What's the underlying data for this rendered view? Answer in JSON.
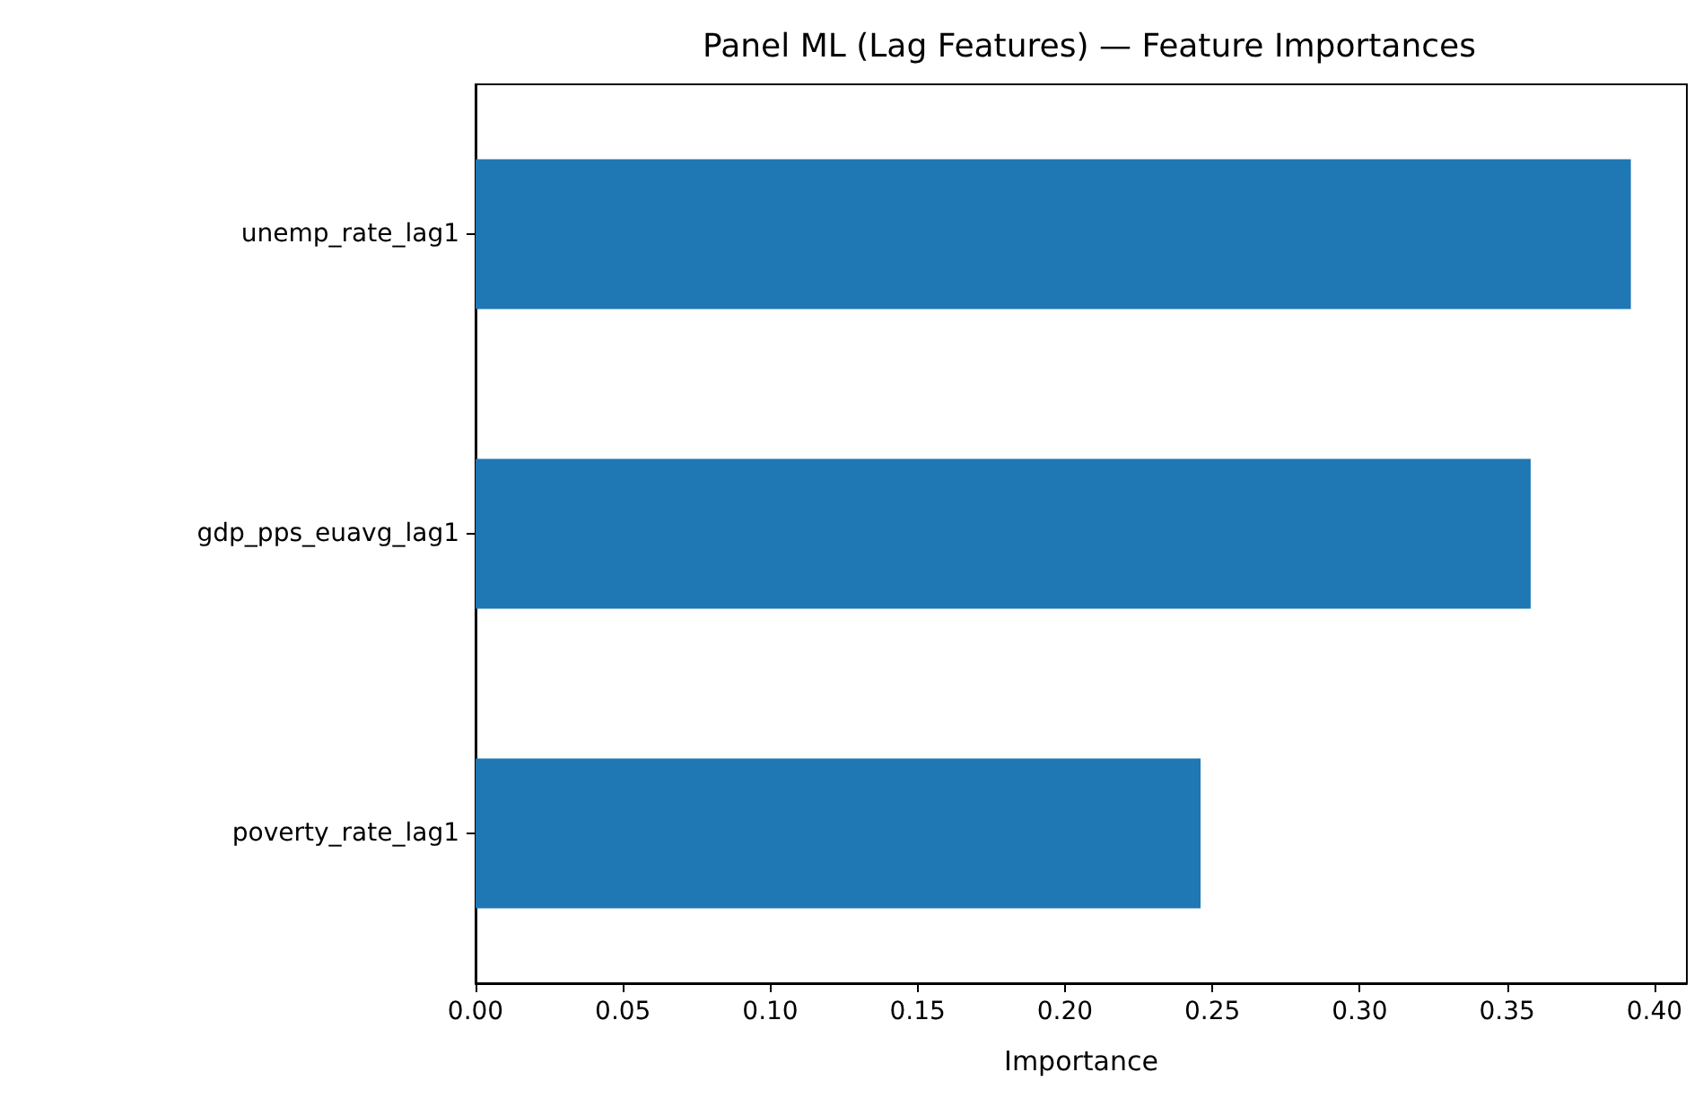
{
  "chart_data": {
    "type": "bar",
    "orientation": "horizontal",
    "title": "Panel ML (Lag Features) — Feature Importances",
    "xlabel": "Importance",
    "categories": [
      "unemp_rate_lag1",
      "gdp_pps_euavg_lag1",
      "poverty_rate_lag1"
    ],
    "values": [
      0.392,
      0.358,
      0.246
    ],
    "color": "#1f77b4",
    "xlim": [
      0,
      0.411
    ],
    "xticks": [
      {
        "value": 0,
        "label": "0.00"
      },
      {
        "value": 0.05,
        "label": "0.05"
      },
      {
        "value": 0.1,
        "label": "0.10"
      },
      {
        "value": 0.15,
        "label": "0.15"
      },
      {
        "value": 0.2,
        "label": "0.20"
      },
      {
        "value": 0.25,
        "label": "0.25"
      },
      {
        "value": 0.3,
        "label": "0.30"
      },
      {
        "value": 0.35,
        "label": "0.35"
      },
      {
        "value": 0.4,
        "label": "0.40"
      }
    ],
    "grid": false
  }
}
